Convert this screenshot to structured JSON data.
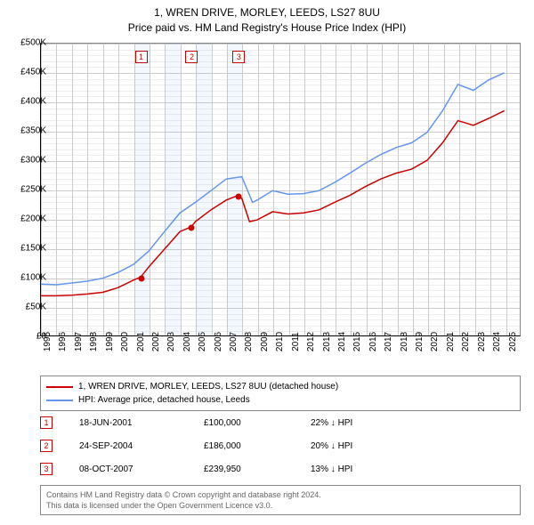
{
  "title_line1": "1, WREN DRIVE, MORLEY, LEEDS, LS27 8UU",
  "title_line2": "Price paid vs. HM Land Registry's House Price Index (HPI)",
  "chart": {
    "type": "line",
    "x_start": 1995,
    "x_end": 2026,
    "y_min": 0,
    "y_max": 500000,
    "y_tick_step": 50000,
    "y_minor_step": 10000,
    "y_ticks": [
      "£0",
      "£50K",
      "£100K",
      "£150K",
      "£200K",
      "£250K",
      "£300K",
      "£350K",
      "£400K",
      "£450K",
      "£500K"
    ],
    "x_ticks": [
      1995,
      1996,
      1997,
      1998,
      1999,
      2000,
      2001,
      2002,
      2003,
      2004,
      2005,
      2006,
      2007,
      2008,
      2009,
      2010,
      2011,
      2012,
      2013,
      2014,
      2015,
      2016,
      2017,
      2018,
      2019,
      2020,
      2021,
      2022,
      2023,
      2024,
      2025
    ],
    "band_years": [
      [
        2001,
        2002
      ],
      [
        2003,
        2004
      ],
      [
        2005,
        2006
      ],
      [
        2007,
        2008
      ]
    ],
    "series": [
      {
        "name": "property",
        "color": "#cc0000",
        "width": 1.5,
        "points": [
          [
            1995,
            68000
          ],
          [
            1996,
            68000
          ],
          [
            1997,
            69000
          ],
          [
            1998,
            71000
          ],
          [
            1999,
            74000
          ],
          [
            2000,
            82000
          ],
          [
            2001,
            95000
          ],
          [
            2001.46,
            100000
          ],
          [
            2002,
            118000
          ],
          [
            2003,
            148000
          ],
          [
            2004,
            178000
          ],
          [
            2004.73,
            186000
          ],
          [
            2005,
            195000
          ],
          [
            2006,
            215000
          ],
          [
            2007,
            232000
          ],
          [
            2007.77,
            239950
          ],
          [
            2008,
            235000
          ],
          [
            2008.5,
            195000
          ],
          [
            2009,
            198000
          ],
          [
            2010,
            212000
          ],
          [
            2011,
            208000
          ],
          [
            2012,
            210000
          ],
          [
            2013,
            215000
          ],
          [
            2014,
            228000
          ],
          [
            2015,
            240000
          ],
          [
            2016,
            255000
          ],
          [
            2017,
            268000
          ],
          [
            2018,
            278000
          ],
          [
            2019,
            285000
          ],
          [
            2020,
            300000
          ],
          [
            2021,
            330000
          ],
          [
            2022,
            368000
          ],
          [
            2023,
            360000
          ],
          [
            2024,
            372000
          ],
          [
            2025,
            385000
          ]
        ]
      },
      {
        "name": "hpi",
        "color": "#6495ed",
        "width": 1.5,
        "points": [
          [
            1995,
            88000
          ],
          [
            1996,
            87000
          ],
          [
            1997,
            90000
          ],
          [
            1998,
            93000
          ],
          [
            1999,
            98000
          ],
          [
            2000,
            108000
          ],
          [
            2001,
            122000
          ],
          [
            2002,
            145000
          ],
          [
            2003,
            178000
          ],
          [
            2004,
            210000
          ],
          [
            2005,
            228000
          ],
          [
            2006,
            248000
          ],
          [
            2007,
            268000
          ],
          [
            2008,
            272000
          ],
          [
            2008.7,
            228000
          ],
          [
            2009,
            232000
          ],
          [
            2010,
            248000
          ],
          [
            2011,
            242000
          ],
          [
            2012,
            243000
          ],
          [
            2013,
            248000
          ],
          [
            2014,
            262000
          ],
          [
            2015,
            278000
          ],
          [
            2016,
            295000
          ],
          [
            2017,
            310000
          ],
          [
            2018,
            322000
          ],
          [
            2019,
            330000
          ],
          [
            2020,
            348000
          ],
          [
            2021,
            385000
          ],
          [
            2022,
            430000
          ],
          [
            2023,
            420000
          ],
          [
            2024,
            438000
          ],
          [
            2025,
            450000
          ]
        ]
      }
    ],
    "sale_markers": [
      {
        "n": "1",
        "year": 2001.46,
        "value": 100000
      },
      {
        "n": "2",
        "year": 2004.73,
        "value": 186000
      },
      {
        "n": "3",
        "year": 2007.77,
        "value": 239950
      }
    ]
  },
  "legend": {
    "items": [
      {
        "color": "#cc0000",
        "label": "1, WREN DRIVE, MORLEY, LEEDS, LS27 8UU (detached house)"
      },
      {
        "color": "#6495ed",
        "label": "HPI: Average price, detached house, Leeds"
      }
    ]
  },
  "sales": [
    {
      "n": "1",
      "date": "18-JUN-2001",
      "price": "£100,000",
      "pct": "22% ↓ HPI"
    },
    {
      "n": "2",
      "date": "24-SEP-2004",
      "price": "£186,000",
      "pct": "20% ↓ HPI"
    },
    {
      "n": "3",
      "date": "08-OCT-2007",
      "price": "£239,950",
      "pct": "13% ↓ HPI"
    }
  ],
  "attribution": {
    "line1": "Contains HM Land Registry data © Crown copyright and database right 2024.",
    "line2": "This data is licensed under the Open Government Licence v3.0."
  }
}
